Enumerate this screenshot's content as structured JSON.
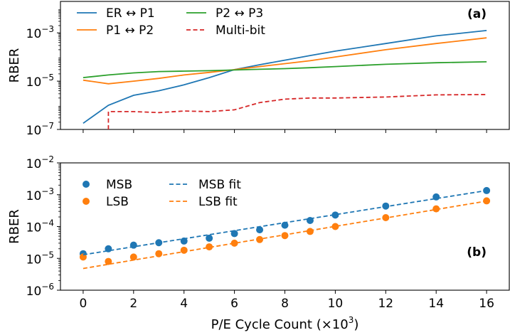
{
  "chart_data": [
    {
      "panel_tag": "(a)",
      "type": "line",
      "ylabel": "RBER",
      "xlabel": "",
      "yscale": "log",
      "ylim": [
        1e-07,
        0.02
      ],
      "xlim": [
        -0.9,
        16.9
      ],
      "x_ticks": [
        0,
        2,
        4,
        6,
        8,
        10,
        12,
        14,
        16
      ],
      "y_ticks": [
        {
          "value": 1e-07,
          "base": "10",
          "exp": "−7"
        },
        {
          "value": 1e-05,
          "base": "10",
          "exp": "−5"
        },
        {
          "value": 0.001,
          "base": "10",
          "exp": "−3"
        }
      ],
      "legend_position": "top-left",
      "grid": false,
      "series": [
        {
          "name": "ER ↔ P1",
          "color": "#1f77b4",
          "style": "solid",
          "x": [
            0,
            1,
            2,
            3,
            4,
            5,
            6,
            7,
            8,
            9,
            10,
            12,
            14,
            16
          ],
          "values": [
            1.8e-07,
            1e-06,
            2.6e-06,
            4e-06,
            7e-06,
            1.4e-05,
            3e-05,
            4.8e-05,
            7.4e-05,
            0.000115,
            0.000175,
            0.00036,
            0.00075,
            0.00125
          ]
        },
        {
          "name": "P1 ↔ P2",
          "color": "#ff7f0e",
          "style": "solid",
          "x": [
            0,
            1,
            2,
            3,
            4,
            5,
            6,
            7,
            8,
            9,
            10,
            12,
            14,
            16
          ],
          "values": [
            1.1e-05,
            7.8e-06,
            1e-05,
            1.3e-05,
            1.8e-05,
            2.3e-05,
            3e-05,
            4e-05,
            5.3e-05,
            7e-05,
            0.0001,
            0.0002,
            0.00036,
            0.00062
          ]
        },
        {
          "name": "P2 ↔ P3",
          "color": "#2ca02c",
          "style": "solid",
          "x": [
            0,
            1,
            2,
            3,
            4,
            5,
            6,
            7,
            8,
            9,
            10,
            12,
            14,
            16
          ],
          "values": [
            1.4e-05,
            1.8e-05,
            2.2e-05,
            2.5e-05,
            2.6e-05,
            2.7e-05,
            2.9e-05,
            3.1e-05,
            3.3e-05,
            3.6e-05,
            4e-05,
            5e-05,
            5.8e-05,
            6.3e-05
          ]
        },
        {
          "name": "Multi-bit",
          "color": "#d62728",
          "style": "dashed",
          "x": [
            1,
            1,
            2,
            3,
            4,
            5,
            6,
            7,
            8,
            9,
            10,
            12,
            14,
            16
          ],
          "values": [
            1e-07,
            5.5e-07,
            5.5e-07,
            5e-07,
            5.8e-07,
            5.5e-07,
            6.5e-07,
            1.3e-06,
            1.8e-06,
            2e-06,
            2e-06,
            2.2e-06,
            2.7e-06,
            2.8e-06
          ]
        }
      ]
    },
    {
      "panel_tag": "(b)",
      "type": "scatter",
      "ylabel": "RBER",
      "xlabel": "P/E Cycle Count (×10",
      "xlabel_exp": "3",
      "xlabel_close": ")",
      "yscale": "log",
      "ylim": [
        1e-06,
        0.01
      ],
      "xlim": [
        -0.9,
        16.9
      ],
      "x_ticks": [
        0,
        2,
        4,
        6,
        8,
        10,
        12,
        14,
        16
      ],
      "y_ticks": [
        {
          "value": 1e-06,
          "base": "10",
          "exp": "−6"
        },
        {
          "value": 1e-05,
          "base": "10",
          "exp": "−5"
        },
        {
          "value": 0.0001,
          "base": "10",
          "exp": "−4"
        },
        {
          "value": 0.001,
          "base": "10",
          "exp": "−3"
        },
        {
          "value": 0.01,
          "base": "10",
          "exp": "−2"
        }
      ],
      "legend_position": "top-left",
      "grid": false,
      "series": [
        {
          "name": "MSB",
          "color": "#1f77b4",
          "style": "markers",
          "x": [
            0,
            1,
            2,
            3,
            4,
            5,
            6,
            7,
            8,
            9,
            10,
            12,
            14,
            16
          ],
          "values": [
            1.4e-05,
            2e-05,
            2.6e-05,
            3.1e-05,
            3.5e-05,
            4.3e-05,
            6e-05,
            7.9e-05,
            0.00011,
            0.000155,
            0.00023,
            0.00044,
            0.00085,
            0.00135
          ]
        },
        {
          "name": "LSB",
          "color": "#ff7f0e",
          "style": "markers",
          "x": [
            0,
            1,
            2,
            3,
            4,
            5,
            6,
            7,
            8,
            9,
            10,
            12,
            14,
            16
          ],
          "values": [
            1.1e-05,
            8e-06,
            1.1e-05,
            1.4e-05,
            1.8e-05,
            2.3e-05,
            3e-05,
            3.9e-05,
            5.2e-05,
            7e-05,
            0.0001,
            0.00019,
            0.00036,
            0.00064
          ]
        },
        {
          "name": "MSB fit",
          "color": "#1f77b4",
          "style": "dashed",
          "x": [
            0,
            16
          ],
          "values": [
            1.3e-05,
            0.00135
          ]
        },
        {
          "name": "LSB fit",
          "color": "#ff7f0e",
          "style": "dashed",
          "x": [
            0,
            16
          ],
          "values": [
            4.8e-06,
            0.00063
          ]
        }
      ]
    }
  ]
}
